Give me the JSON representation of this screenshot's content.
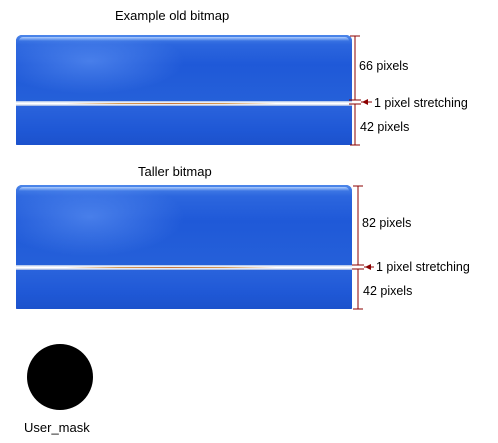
{
  "example1": {
    "title": "Example  old bitmap",
    "top_label": "66 pixels",
    "stretch_label": "1 pixel stretching",
    "bottom_label": "42 pixels"
  },
  "example2": {
    "title": "Taller bitmap",
    "top_label": "82 pixels",
    "stretch_label": "1 pixel stretching",
    "bottom_label": "42 pixels"
  },
  "mask": {
    "label": "User_mask"
  },
  "colors": {
    "panel_blue": "#1f59d8",
    "dimension_line": "#8b0000",
    "mask": "#000000"
  }
}
